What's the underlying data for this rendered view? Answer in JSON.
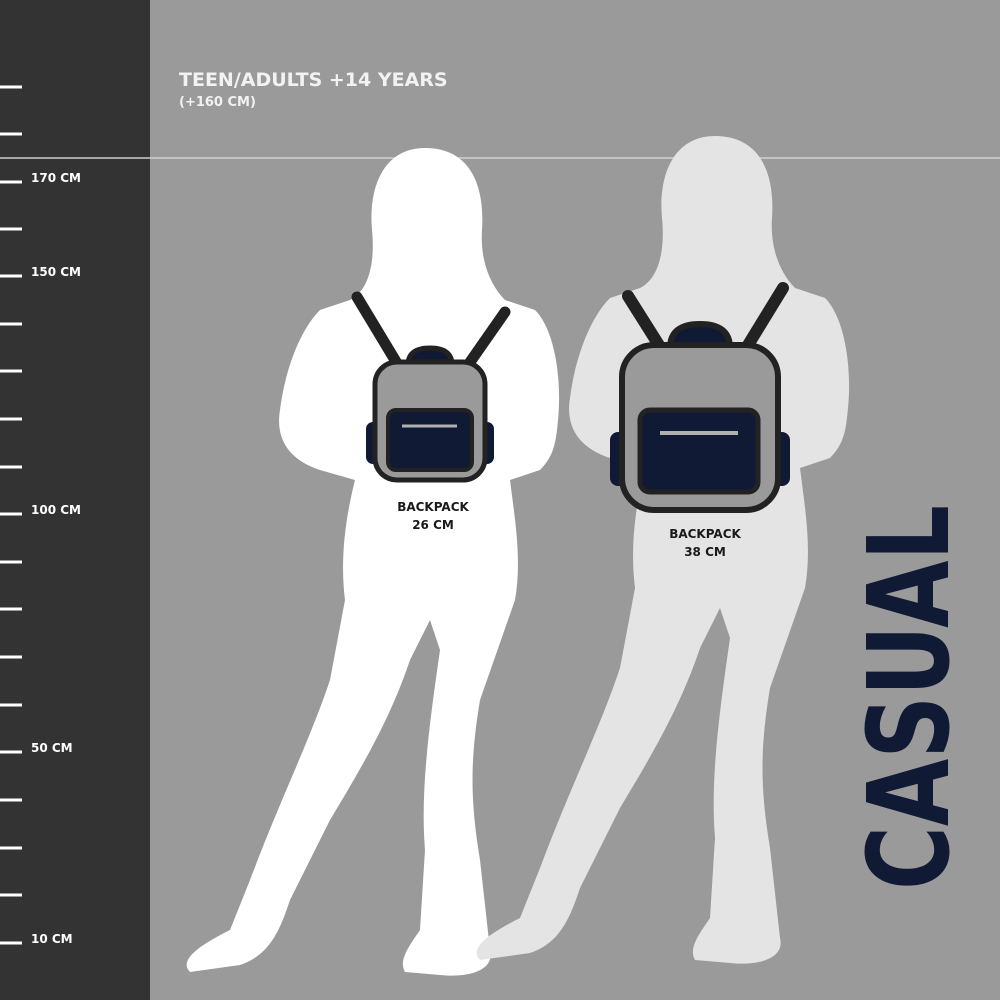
{
  "header": {
    "title": "TEEN/ADULTS +14 YEARS",
    "subtitle": "(+160 CM)"
  },
  "ruler": {
    "labels": [
      "170 CM",
      "150 CM",
      "100 CM",
      "50 CM",
      "10 CM"
    ]
  },
  "figures": [
    {
      "backpack_label": "BACKPACK",
      "backpack_size": "26 CM"
    },
    {
      "backpack_label": "BACKPACK",
      "backpack_size": "38 CM"
    }
  ],
  "side_text": "CASUAL",
  "colors": {
    "ruler_bg": "#333333",
    "background": "#9a9a9a",
    "figure_1": "#ffffff",
    "figure_2": "#e4e4e4",
    "navy": "#101a35",
    "backpack_body": "#9a9a9a"
  }
}
